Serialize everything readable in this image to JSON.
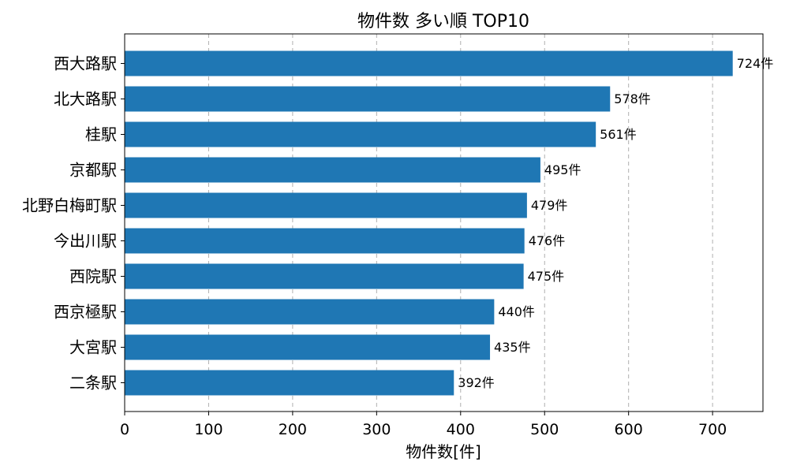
{
  "chart_data": {
    "type": "bar",
    "orientation": "horizontal",
    "title": "物件数 多い順 TOP10",
    "xlabel": "物件数[件]",
    "ylabel": "",
    "categories": [
      "西大路駅",
      "北大路駅",
      "桂駅",
      "京都駅",
      "北野白梅町駅",
      "今出川駅",
      "西院駅",
      "西京極駅",
      "大宮駅",
      "二条駅"
    ],
    "values": [
      724,
      578,
      561,
      495,
      479,
      476,
      475,
      440,
      435,
      392
    ],
    "value_labels": [
      "724件",
      "578件",
      "561件",
      "495件",
      "479件",
      "476件",
      "475件",
      "440件",
      "435件",
      "392件"
    ],
    "xlim": [
      0,
      760
    ],
    "xticks": [
      0,
      100,
      200,
      300,
      400,
      500,
      600,
      700
    ],
    "xtick_labels": [
      "0",
      "100",
      "200",
      "300",
      "400",
      "500",
      "600",
      "700"
    ],
    "grid": "x-dashed",
    "bar_color": "#1f77b4"
  }
}
